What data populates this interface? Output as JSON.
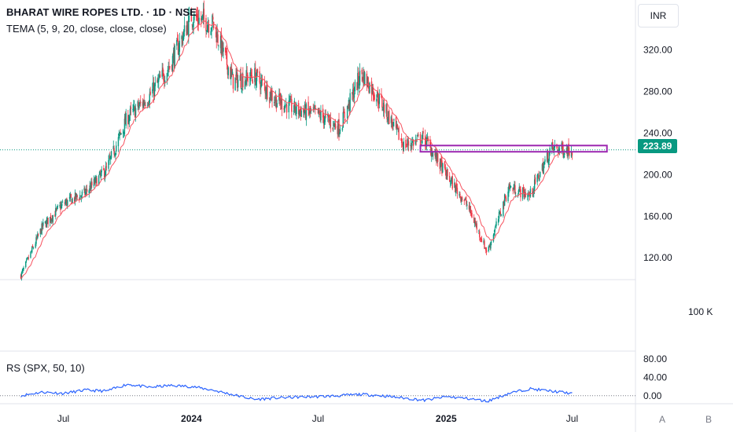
{
  "header": {
    "symbol_line": "BHARAT WIRE ROPES LTD. · 1D · NSE",
    "indicator_line": "TEMA (5, 9, 20, close, close, close)"
  },
  "currency": "INR",
  "last_price": "223.89",
  "volume_scale_label": "100 K",
  "rs_label": "RS (SPX, 50, 10)",
  "bottom_buttons": [
    "A",
    "B"
  ],
  "colors": {
    "up": "#089981",
    "down": "#f23645",
    "tema": "#f7525f",
    "rs": "#2962ff",
    "box": "#9c27b0",
    "price_badge": "#089981",
    "grid": "#e0e3eb"
  },
  "chart_data": [
    {
      "type": "candlestick",
      "overlay": "TEMA (5, 9, 20, close, close, close)",
      "x_ticks": [
        "Jul",
        "2024",
        "Jul",
        "2025",
        "Jul"
      ],
      "y_ticks": [
        120,
        160,
        200,
        240,
        280,
        320
      ],
      "ylim": [
        99,
        368
      ],
      "last_price": 223.89,
      "zone": {
        "y_range": [
          222,
          228
        ],
        "start": "2024-11",
        "end": "2025-08"
      },
      "close_path": [
        [
          "2023-05-01",
          103
        ],
        [
          "2023-06-01",
          150
        ],
        [
          "2023-07-01",
          172
        ],
        [
          "2023-08-01",
          182
        ],
        [
          "2023-09-01",
          205
        ],
        [
          "2023-10-01",
          255
        ],
        [
          "2023-11-01",
          275
        ],
        [
          "2023-12-01",
          305
        ],
        [
          "2024-01-01",
          352
        ],
        [
          "2024-02-01",
          345
        ],
        [
          "2024-03-01",
          290
        ],
        [
          "2024-04-01",
          295
        ],
        [
          "2024-05-01",
          272
        ],
        [
          "2024-06-01",
          262
        ],
        [
          "2024-07-01",
          258
        ],
        [
          "2024-08-01",
          245
        ],
        [
          "2024-09-01",
          298
        ],
        [
          "2024-10-01",
          268
        ],
        [
          "2024-11-01",
          228
        ],
        [
          "2024-12-01",
          235
        ],
        [
          "2025-01-01",
          200
        ],
        [
          "2025-02-01",
          170
        ],
        [
          "2025-03-01",
          125
        ],
        [
          "2025-04-01",
          188
        ],
        [
          "2025-05-01",
          180
        ],
        [
          "2025-06-01",
          225
        ],
        [
          "2025-07-01",
          223.89
        ]
      ]
    },
    {
      "type": "line",
      "name": "RS (SPX, 50, 10)",
      "y_ticks": [
        0,
        40,
        80
      ],
      "ylim": [
        -14,
        95
      ],
      "points": [
        [
          "2023-05-01",
          0
        ],
        [
          "2023-06-01",
          8
        ],
        [
          "2023-07-01",
          5
        ],
        [
          "2023-08-01",
          12
        ],
        [
          "2023-09-01",
          10
        ],
        [
          "2023-10-01",
          25
        ],
        [
          "2023-11-01",
          18
        ],
        [
          "2023-12-01",
          22
        ],
        [
          "2024-01-01",
          20
        ],
        [
          "2024-02-01",
          12
        ],
        [
          "2024-03-01",
          2
        ],
        [
          "2024-04-01",
          -8
        ],
        [
          "2024-05-01",
          -5
        ],
        [
          "2024-06-01",
          -3
        ],
        [
          "2024-07-01",
          -2
        ],
        [
          "2024-08-01",
          0
        ],
        [
          "2024-09-01",
          3
        ],
        [
          "2024-10-01",
          0
        ],
        [
          "2024-11-01",
          -5
        ],
        [
          "2024-12-01",
          -10
        ],
        [
          "2025-01-01",
          -2
        ],
        [
          "2025-02-01",
          -6
        ],
        [
          "2025-03-01",
          -12
        ],
        [
          "2025-04-01",
          5
        ],
        [
          "2025-05-01",
          15
        ],
        [
          "2025-06-01",
          10
        ],
        [
          "2025-07-01",
          5
        ]
      ]
    }
  ]
}
